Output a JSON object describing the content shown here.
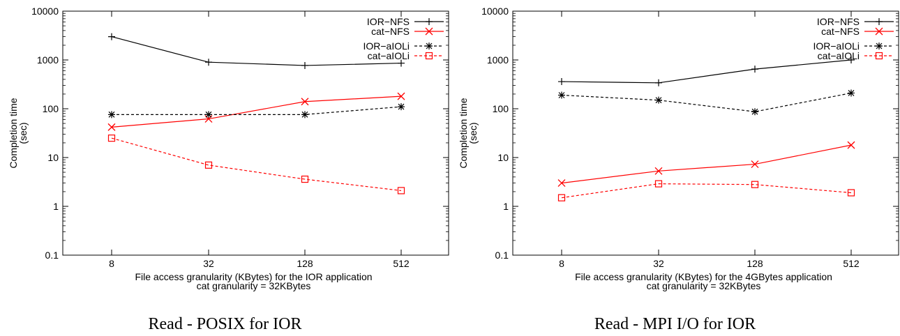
{
  "colors": {
    "nfs": "#000000",
    "aioli": "#000000",
    "cat": "#ff0000",
    "axis": "#000000"
  },
  "chart_data": [
    {
      "type": "line",
      "title": "Read - POSIX for IOR",
      "xlabel": "File access granularity (KBytes) for the IOR application",
      "xlabel2": "cat granularity = 32KBytes",
      "ylabel": "Completion time",
      "ylabel2": "(sec)",
      "yscale": "log",
      "ylim": [
        0.1,
        10000
      ],
      "yticks": [
        "0.1",
        "1",
        "10",
        "100",
        "1000",
        "10000"
      ],
      "categories": [
        "8",
        "32",
        "128",
        "512"
      ],
      "legend_placement": "top-right",
      "series": [
        {
          "name": "IOR−NFS",
          "values": [
            3000,
            900,
            770,
            860
          ],
          "color": "#000000",
          "dash": "solid",
          "marker": "plus"
        },
        {
          "name": "cat−NFS",
          "values": [
            42,
            62,
            140,
            180
          ],
          "color": "#ff0000",
          "dash": "solid",
          "marker": "x"
        },
        {
          "name": "IOR−aIOLi",
          "values": [
            76,
            76,
            76,
            110
          ],
          "color": "#000000",
          "dash": "dashed",
          "marker": "star"
        },
        {
          "name": "cat−aIOLi",
          "values": [
            25,
            7,
            3.6,
            2.1
          ],
          "color": "#ff0000",
          "dash": "dashed",
          "marker": "square"
        }
      ]
    },
    {
      "type": "line",
      "title": "Read - MPI I/O for IOR",
      "xlabel": "File access granularity (KBytes) for the 4GBytes application",
      "xlabel2": "cat granularity = 32KBytes",
      "ylabel": "Completion time",
      "ylabel2": "(sec)",
      "yscale": "log",
      "ylim": [
        0.1,
        10000
      ],
      "yticks": [
        "0.1",
        "1",
        "10",
        "100",
        "1000",
        "10000"
      ],
      "categories": [
        "8",
        "32",
        "128",
        "512"
      ],
      "legend_placement": "top-right",
      "series": [
        {
          "name": "IOR−NFS",
          "values": [
            360,
            340,
            650,
            1000
          ],
          "color": "#000000",
          "dash": "solid",
          "marker": "plus"
        },
        {
          "name": "cat−NFS",
          "values": [
            3.0,
            5.3,
            7.3,
            18
          ],
          "color": "#ff0000",
          "dash": "solid",
          "marker": "x"
        },
        {
          "name": "IOR−aIOLi",
          "values": [
            190,
            150,
            87,
            210
          ],
          "color": "#000000",
          "dash": "dashed",
          "marker": "star"
        },
        {
          "name": "cat−aIOLi",
          "values": [
            1.5,
            2.9,
            2.8,
            1.9
          ],
          "color": "#ff0000",
          "dash": "dashed",
          "marker": "square"
        }
      ]
    }
  ]
}
